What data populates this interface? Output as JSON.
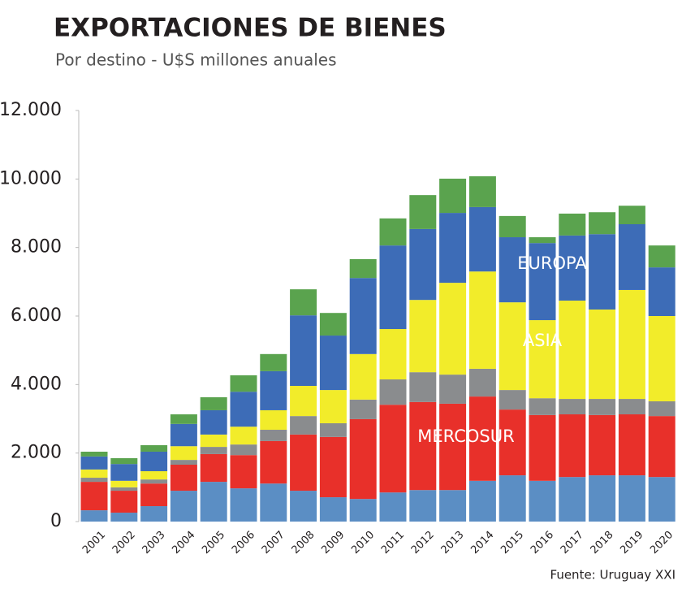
{
  "chart_data": {
    "type": "stacked-bar",
    "title": "EXPORTACIONES DE BIENES",
    "subtitle": "Por destino - U$S millones anuales",
    "source": "Fuente: Uruguay XXI",
    "categories": [
      "2001",
      "2002",
      "2003",
      "2004",
      "2005",
      "2006",
      "2007",
      "2008",
      "2009",
      "2010",
      "2011",
      "2012",
      "2013",
      "2014",
      "2015",
      "2016",
      "2017",
      "2018",
      "2019",
      "2020"
    ],
    "series": [
      {
        "color": "#5b8ec4",
        "values": [
          330,
          260,
          450,
          900,
          1160,
          970,
          1110,
          900,
          710,
          660,
          850,
          920,
          920,
          1190,
          1350,
          1190,
          1300,
          1350,
          1350,
          1300
        ]
      },
      {
        "name": "MERCOSUR",
        "color": "#e8302a",
        "values": [
          830,
          640,
          660,
          760,
          810,
          970,
          1240,
          1640,
          1760,
          2330,
          2560,
          2570,
          2520,
          2460,
          1920,
          1920,
          1830,
          1760,
          1780,
          1780
        ]
      },
      {
        "color": "#8a8c8e",
        "values": [
          120,
          100,
          120,
          140,
          210,
          310,
          330,
          540,
          400,
          570,
          740,
          870,
          850,
          810,
          570,
          490,
          450,
          470,
          450,
          430
        ]
      },
      {
        "name": "ASIA",
        "color": "#f2ec2a",
        "values": [
          240,
          190,
          240,
          400,
          360,
          520,
          570,
          880,
          970,
          1330,
          1470,
          2110,
          2680,
          2840,
          2560,
          2280,
          2870,
          2610,
          3180,
          2490
        ]
      },
      {
        "name": "EUROPA",
        "color": "#3d6cb7",
        "values": [
          380,
          490,
          570,
          650,
          710,
          1020,
          1140,
          2060,
          1590,
          2220,
          2440,
          2070,
          2040,
          1880,
          1900,
          2250,
          1900,
          2200,
          1920,
          1420
        ]
      },
      {
        "color": "#5aa34e",
        "values": [
          140,
          170,
          190,
          280,
          380,
          480,
          500,
          760,
          660,
          550,
          790,
          990,
          1000,
          900,
          620,
          170,
          640,
          640,
          540,
          640
        ]
      }
    ],
    "ylim": [
      0,
      12000
    ],
    "yticks": [
      0,
      {
        "value": 2000,
        "label": "2.000"
      },
      {
        "value": 4000,
        "label": "4.000"
      },
      {
        "value": 6000,
        "label": "6.000"
      },
      {
        "value": 8000,
        "label": "8.000"
      },
      {
        "value": 10000,
        "label": "10.000"
      },
      {
        "value": 12000,
        "label": "12.000"
      }
    ]
  }
}
